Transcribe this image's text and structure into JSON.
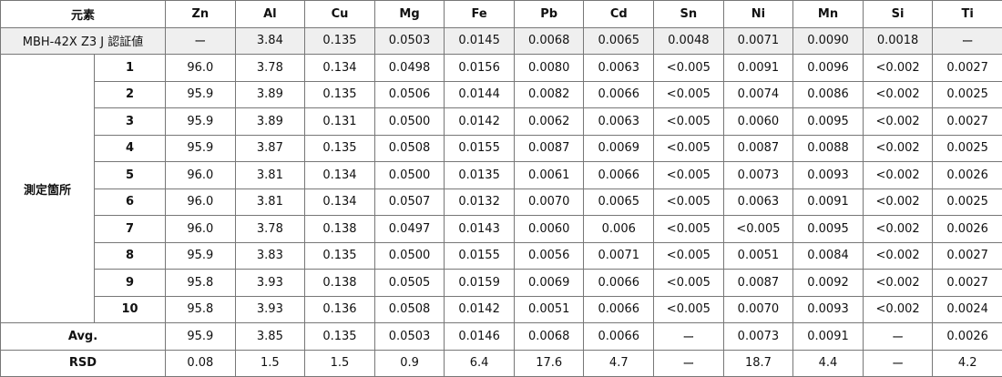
{
  "header": {
    "corner": "元素",
    "elements": [
      "Zn",
      "Al",
      "Cu",
      "Mg",
      "Fe",
      "Pb",
      "Cd",
      "Sn",
      "Ni",
      "Mn",
      "Si",
      "Ti"
    ]
  },
  "certified": {
    "label": "MBH-42X Z3 J 認証値",
    "values": [
      "ー",
      "3.84",
      "0.135",
      "0.0503",
      "0.0145",
      "0.0068",
      "0.0065",
      "0.0048",
      "0.0071",
      "0.0090",
      "0.0018",
      "ー"
    ]
  },
  "measurements": {
    "label": "測定箇所",
    "rows": [
      {
        "no": "1",
        "values": [
          "96.0",
          "3.78",
          "0.134",
          "0.0498",
          "0.0156",
          "0.0080",
          "0.0063",
          "<0.005",
          "0.0091",
          "0.0096",
          "<0.002",
          "0.0027"
        ]
      },
      {
        "no": "2",
        "values": [
          "95.9",
          "3.89",
          "0.135",
          "0.0506",
          "0.0144",
          "0.0082",
          "0.0066",
          "<0.005",
          "0.0074",
          "0.0086",
          "<0.002",
          "0.0025"
        ]
      },
      {
        "no": "3",
        "values": [
          "95.9",
          "3.89",
          "0.131",
          "0.0500",
          "0.0142",
          "0.0062",
          "0.0063",
          "<0.005",
          "0.0060",
          "0.0095",
          "<0.002",
          "0.0027"
        ]
      },
      {
        "no": "4",
        "values": [
          "95.9",
          "3.87",
          "0.135",
          "0.0508",
          "0.0155",
          "0.0087",
          "0.0069",
          "<0.005",
          "0.0087",
          "0.0088",
          "<0.002",
          "0.0025"
        ]
      },
      {
        "no": "5",
        "values": [
          "96.0",
          "3.81",
          "0.134",
          "0.0500",
          "0.0135",
          "0.0061",
          "0.0066",
          "<0.005",
          "0.0073",
          "0.0093",
          "<0.002",
          "0.0026"
        ]
      },
      {
        "no": "6",
        "values": [
          "96.0",
          "3.81",
          "0.134",
          "0.0507",
          "0.0132",
          "0.0070",
          "0.0065",
          "<0.005",
          "0.0063",
          "0.0091",
          "<0.002",
          "0.0025"
        ]
      },
      {
        "no": "7",
        "values": [
          "96.0",
          "3.78",
          "0.138",
          "0.0497",
          "0.0143",
          "0.0060",
          "0.006",
          "<0.005",
          "<0.005",
          "0.0095",
          "<0.002",
          "0.0026"
        ]
      },
      {
        "no": "8",
        "values": [
          "95.9",
          "3.83",
          "0.135",
          "0.0500",
          "0.0155",
          "0.0056",
          "0.0071",
          "<0.005",
          "0.0051",
          "0.0084",
          "<0.002",
          "0.0027"
        ]
      },
      {
        "no": "9",
        "values": [
          "95.8",
          "3.93",
          "0.138",
          "0.0505",
          "0.0159",
          "0.0069",
          "0.0066",
          "<0.005",
          "0.0087",
          "0.0092",
          "<0.002",
          "0.0027"
        ]
      },
      {
        "no": "10",
        "values": [
          "95.8",
          "3.93",
          "0.136",
          "0.0508",
          "0.0142",
          "0.0051",
          "0.0066",
          "<0.005",
          "0.0070",
          "0.0093",
          "<0.002",
          "0.0024"
        ]
      }
    ]
  },
  "average": {
    "label": "Avg.",
    "values": [
      "95.9",
      "3.85",
      "0.135",
      "0.0503",
      "0.0146",
      "0.0068",
      "0.0066",
      "ー",
      "0.0073",
      "0.0091",
      "ー",
      "0.0026"
    ]
  },
  "rsd": {
    "label": "RSD",
    "values": [
      "0.08",
      "1.5",
      "1.5",
      "0.9",
      "6.4",
      "17.6",
      "4.7",
      "ー",
      "18.7",
      "4.4",
      "ー",
      "4.2"
    ]
  }
}
